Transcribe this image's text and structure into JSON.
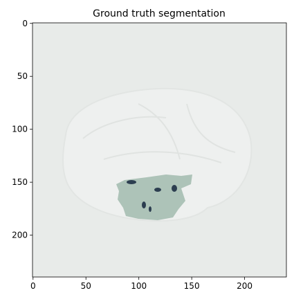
{
  "chart_data": {
    "type": "image",
    "title": "Ground truth segmentation",
    "xlim": [
      -0.5,
      239.5
    ],
    "ylim": [
      239.5,
      -0.5
    ],
    "xticks": [
      0,
      50,
      100,
      150,
      200
    ],
    "yticks": [
      0,
      50,
      100,
      150,
      200
    ]
  }
}
